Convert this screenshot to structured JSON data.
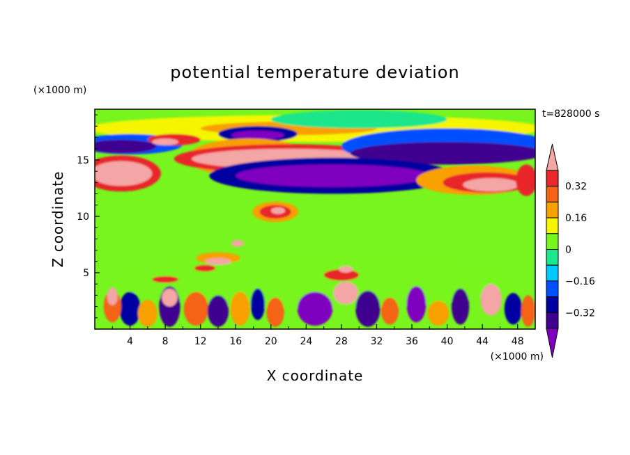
{
  "chart_data": {
    "type": "heatmap",
    "title": "potential temperature deviation",
    "xlabel": "X coordinate",
    "ylabel": "Z coordinate",
    "x_unit": "(×1000 m)",
    "y_unit": "(×1000 m)",
    "time_label": "t=828000 s",
    "xlim": [
      0,
      50
    ],
    "ylim": [
      0,
      19.5
    ],
    "x_ticks": [
      4,
      8,
      12,
      16,
      20,
      24,
      28,
      32,
      36,
      40,
      44,
      48
    ],
    "y_ticks": [
      5,
      10,
      15
    ],
    "colorbar": {
      "levels": [
        -0.4,
        -0.32,
        -0.24,
        -0.16,
        -0.08,
        0,
        0.08,
        0.16,
        0.24,
        0.32,
        0.4
      ],
      "tick_labels": [
        "0.32",
        "0.16",
        "0",
        "−0.16",
        "−0.32"
      ],
      "tick_values": [
        0.32,
        0.16,
        0,
        -0.16,
        -0.32
      ],
      "colors": [
        "#f4a5a5",
        "#e8282a",
        "#f46414",
        "#f8a000",
        "#f5f500",
        "#78f51e",
        "#1ee68c",
        "#00c8ff",
        "#0050ff",
        "#0000a0",
        "#400090",
        "#8000c0"
      ]
    },
    "field_background": "#78f51e",
    "regions": [
      {
        "level": 0.04,
        "x": 25,
        "y": 4,
        "rx": 22,
        "ry": 2.2
      },
      {
        "level": 0.12,
        "x": 25,
        "y": 17.8,
        "rx": 26,
        "ry": 1.2
      },
      {
        "level": 0.2,
        "x": 22,
        "y": 17.8,
        "rx": 10,
        "ry": 0.6
      },
      {
        "level": -0.04,
        "x": 30,
        "y": 18.6,
        "rx": 10,
        "ry": 0.8
      },
      {
        "level": -0.2,
        "x": 4,
        "y": 16.4,
        "rx": 6,
        "ry": 0.9
      },
      {
        "level": -0.36,
        "x": 3,
        "y": 16.2,
        "rx": 4,
        "ry": 0.6
      },
      {
        "level": 0.36,
        "x": 9,
        "y": 16.8,
        "rx": 3,
        "ry": 0.5
      },
      {
        "level": 0.45,
        "x": 8,
        "y": 16.6,
        "rx": 1.5,
        "ry": 0.3
      },
      {
        "level": -0.28,
        "x": 18.5,
        "y": 17.3,
        "rx": 4.5,
        "ry": 0.7
      },
      {
        "level": -0.44,
        "x": 18.5,
        "y": 17.2,
        "rx": 3,
        "ry": 0.4
      },
      {
        "level": 0.2,
        "x": 17.5,
        "y": 15.2,
        "rx": 7,
        "ry": 1.7
      },
      {
        "level": 0.36,
        "x": 22,
        "y": 15.1,
        "rx": 13,
        "ry": 1.3
      },
      {
        "level": 0.45,
        "x": 22,
        "y": 15.1,
        "rx": 11,
        "ry": 0.9
      },
      {
        "level": 0.36,
        "x": 3,
        "y": 13.8,
        "rx": 4.5,
        "ry": 1.6
      },
      {
        "level": 0.45,
        "x": 3,
        "y": 13.8,
        "rx": 3.5,
        "ry": 1.1
      },
      {
        "level": -0.2,
        "x": 40,
        "y": 16.2,
        "rx": 12,
        "ry": 1.6
      },
      {
        "level": -0.36,
        "x": 40,
        "y": 15.6,
        "rx": 11,
        "ry": 1.0
      },
      {
        "level": -0.28,
        "x": 27,
        "y": 13.6,
        "rx": 14,
        "ry": 1.6
      },
      {
        "level": -0.44,
        "x": 27,
        "y": 13.6,
        "rx": 11,
        "ry": 1.0
      },
      {
        "level": 0.2,
        "x": 43,
        "y": 13.2,
        "rx": 6.5,
        "ry": 1.3
      },
      {
        "level": 0.36,
        "x": 44.5,
        "y": 13.0,
        "rx": 5,
        "ry": 0.9
      },
      {
        "level": 0.45,
        "x": 45,
        "y": 12.8,
        "rx": 3.2,
        "ry": 0.6
      },
      {
        "level": 0.36,
        "x": 49,
        "y": 13.2,
        "rx": 1.2,
        "ry": 1.4
      },
      {
        "level": 0.2,
        "x": 20.5,
        "y": 10.4,
        "rx": 2.6,
        "ry": 0.9
      },
      {
        "level": 0.36,
        "x": 20.5,
        "y": 10.4,
        "rx": 1.8,
        "ry": 0.6
      },
      {
        "level": 0.45,
        "x": 20.8,
        "y": 10.5,
        "rx": 0.8,
        "ry": 0.3
      },
      {
        "level": 0.2,
        "x": 14,
        "y": 6.3,
        "rx": 2.5,
        "ry": 0.5
      },
      {
        "level": 0.45,
        "x": 14,
        "y": 6.0,
        "rx": 1.5,
        "ry": 0.3
      },
      {
        "level": 0.45,
        "x": 16.2,
        "y": 7.6,
        "rx": 0.7,
        "ry": 0.3
      },
      {
        "level": 0.36,
        "x": 12.5,
        "y": 5.4,
        "rx": 1.2,
        "ry": 0.3
      },
      {
        "level": 0.36,
        "x": 8,
        "y": 4.4,
        "rx": 1.5,
        "ry": 0.3
      },
      {
        "level": 0.36,
        "x": 28,
        "y": 4.8,
        "rx": 2,
        "ry": 0.5
      },
      {
        "level": 0.45,
        "x": 28.5,
        "y": 5.3,
        "rx": 0.8,
        "ry": 0.3
      },
      {
        "level": -0.28,
        "x": 4,
        "y": 1.8,
        "rx": 1.2,
        "ry": 1.5
      },
      {
        "level": 0.28,
        "x": 2,
        "y": 2.0,
        "rx": 1.0,
        "ry": 1.4
      },
      {
        "level": 0.45,
        "x": 2,
        "y": 2.9,
        "rx": 0.6,
        "ry": 0.8
      },
      {
        "level": 0.2,
        "x": 6,
        "y": 1.4,
        "rx": 1.1,
        "ry": 1.2
      },
      {
        "level": -0.36,
        "x": 8.5,
        "y": 2.0,
        "rx": 1.2,
        "ry": 1.8
      },
      {
        "level": 0.45,
        "x": 8.5,
        "y": 2.8,
        "rx": 0.9,
        "ry": 0.8
      },
      {
        "level": 0.28,
        "x": 11.5,
        "y": 1.8,
        "rx": 1.4,
        "ry": 1.5
      },
      {
        "level": -0.36,
        "x": 14,
        "y": 1.6,
        "rx": 1.2,
        "ry": 1.4
      },
      {
        "level": 0.2,
        "x": 16.5,
        "y": 1.8,
        "rx": 1.1,
        "ry": 1.5
      },
      {
        "level": -0.28,
        "x": 18.5,
        "y": 2.2,
        "rx": 0.8,
        "ry": 1.4
      },
      {
        "level": 0.28,
        "x": 20.5,
        "y": 1.5,
        "rx": 1.0,
        "ry": 1.3
      },
      {
        "level": -0.44,
        "x": 25,
        "y": 1.8,
        "rx": 2.0,
        "ry": 1.5
      },
      {
        "level": 0.45,
        "x": 28.5,
        "y": 3.2,
        "rx": 1.4,
        "ry": 1.0
      },
      {
        "level": -0.36,
        "x": 31,
        "y": 1.8,
        "rx": 1.4,
        "ry": 1.6
      },
      {
        "level": 0.28,
        "x": 33.5,
        "y": 1.6,
        "rx": 1.0,
        "ry": 1.2
      },
      {
        "level": -0.44,
        "x": 36.5,
        "y": 2.2,
        "rx": 1.1,
        "ry": 1.6
      },
      {
        "level": 0.2,
        "x": 39,
        "y": 1.4,
        "rx": 1.2,
        "ry": 1.1
      },
      {
        "level": -0.36,
        "x": 41.5,
        "y": 2.0,
        "rx": 1.0,
        "ry": 1.6
      },
      {
        "level": 0.45,
        "x": 45,
        "y": 2.6,
        "rx": 1.2,
        "ry": 1.4
      },
      {
        "level": -0.28,
        "x": 47.5,
        "y": 1.8,
        "rx": 1.0,
        "ry": 1.4
      },
      {
        "level": 0.28,
        "x": 49.2,
        "y": 1.6,
        "rx": 0.8,
        "ry": 1.4
      }
    ]
  }
}
